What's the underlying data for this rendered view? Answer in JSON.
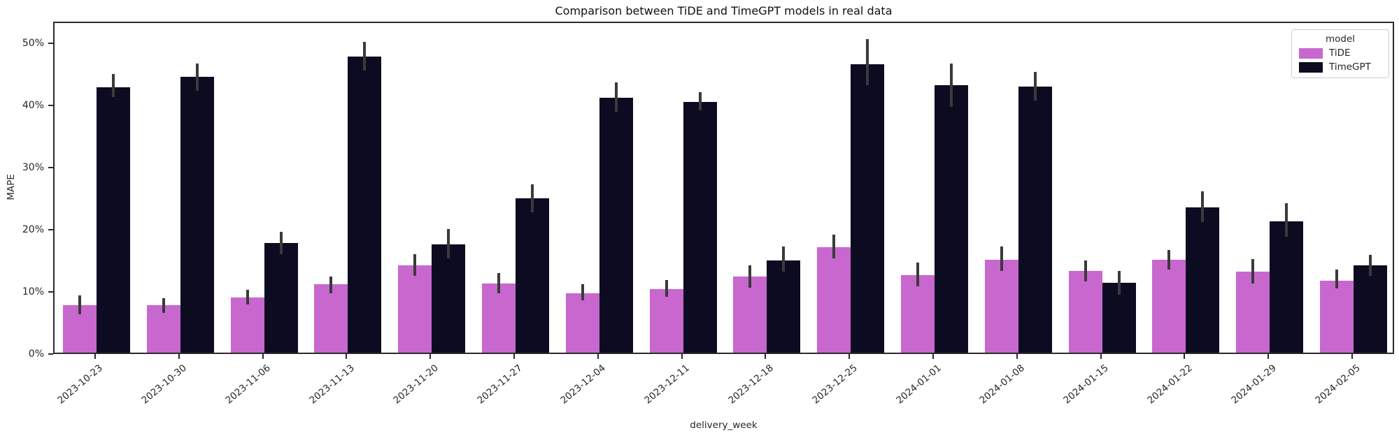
{
  "chart_data": {
    "type": "bar",
    "title": "Comparison between TiDE and TimeGPT models in real data",
    "xlabel": "delivery_week",
    "ylabel": "MAPE",
    "ylim": [
      0,
      53.5
    ],
    "grid": false,
    "legend_position": "upper right",
    "legend_title": "model",
    "ytick_values": [
      0,
      10,
      20,
      30,
      40,
      50
    ],
    "ytick_labels": [
      "0%",
      "10%",
      "20%",
      "30%",
      "40%",
      "50%"
    ],
    "categories": [
      "2023-10-23",
      "2023-10-30",
      "2023-11-06",
      "2023-11-13",
      "2023-11-20",
      "2023-11-27",
      "2023-12-04",
      "2023-12-11",
      "2023-12-18",
      "2023-12-25",
      "2024-01-01",
      "2024-01-08",
      "2024-01-15",
      "2024-01-22",
      "2024-01-29",
      "2024-02-05"
    ],
    "series": [
      {
        "name": "TiDE",
        "color": "#c868ce",
        "values": [
          7.6,
          7.6,
          8.9,
          11.0,
          14.1,
          11.1,
          9.6,
          10.2,
          12.2,
          17.0,
          12.5,
          15.0,
          13.1,
          14.9,
          13.0,
          11.6
        ],
        "ci_low": [
          6.2,
          6.4,
          7.8,
          9.6,
          12.4,
          9.5,
          8.4,
          9.0,
          10.4,
          15.2,
          10.7,
          13.2,
          11.5,
          13.4,
          11.1,
          10.3
        ],
        "ci_high": [
          9.2,
          8.8,
          10.1,
          12.2,
          15.8,
          12.8,
          11.0,
          11.7,
          14.0,
          19.0,
          14.5,
          17.1,
          14.8,
          16.5,
          15.1,
          13.4
        ]
      },
      {
        "name": "TimeGPT",
        "color": "#0d0b21",
        "values": [
          42.7,
          44.4,
          17.7,
          47.7,
          17.4,
          24.8,
          41.0,
          40.4,
          14.8,
          46.4,
          43.1,
          42.8,
          11.2,
          23.4,
          21.1,
          14.1
        ],
        "ci_low": [
          41.1,
          42.2,
          15.8,
          45.4,
          15.2,
          22.6,
          38.8,
          39.0,
          13.0,
          43.1,
          39.6,
          40.6,
          9.3,
          21.0,
          18.7,
          12.4
        ],
        "ci_high": [
          44.8,
          46.5,
          19.5,
          50.0,
          19.9,
          27.1,
          43.5,
          41.9,
          17.1,
          50.5,
          46.5,
          45.2,
          13.1,
          26.0,
          24.1,
          15.7
        ]
      }
    ],
    "errorbar_color": "#3a3a3a"
  }
}
